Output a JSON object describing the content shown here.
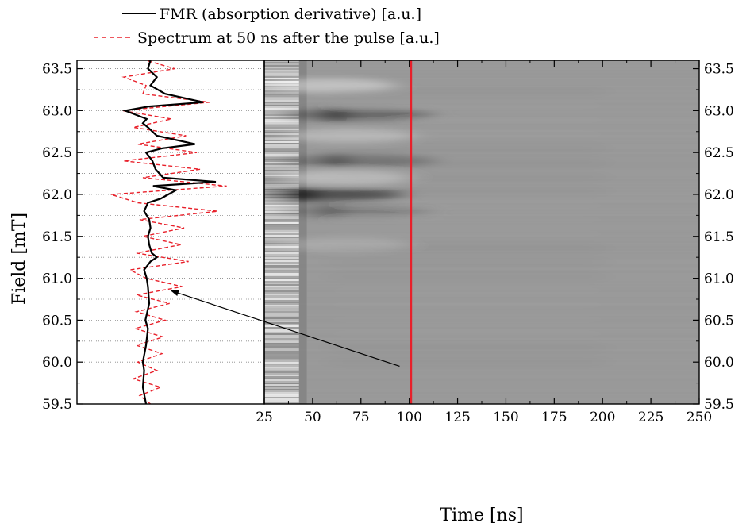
{
  "chart_data": {
    "type": "line",
    "legend": {
      "placement": "top-left",
      "entries": [
        {
          "label": "FMR (absorption derivative) [a.u.]",
          "color": "#000000",
          "style": "solid"
        },
        {
          "label": "Spectrum at 50 ns after the pulse [a.u.]",
          "color": "#e8202a",
          "style": "dashed"
        }
      ]
    },
    "y_axis": {
      "label": "Field [mT]",
      "range": [
        59.5,
        63.6
      ],
      "ticks": [
        "59.5",
        "60.0",
        "60.5",
        "61.0",
        "61.5",
        "62.0",
        "62.5",
        "63.0",
        "63.5"
      ],
      "tick_values": [
        59.5,
        60.0,
        60.5,
        61.0,
        61.5,
        62.0,
        62.5,
        63.0,
        63.5
      ]
    },
    "x_axis": {
      "label": "Time [ns]",
      "range": [
        25,
        250
      ],
      "ticks": [
        "25",
        "50",
        "75",
        "100",
        "125",
        "150",
        "175",
        "200",
        "225",
        "250"
      ],
      "tick_values": [
        25,
        50,
        75,
        100,
        125,
        150,
        175,
        200,
        225,
        250
      ]
    },
    "grid": "horizontal dotted at every 0.25 mT in left panel",
    "marker_time_ns": 101,
    "marker_color": "#e8202a",
    "arrow": {
      "from": [
        95,
        59.95
      ],
      "to": [
        61.25,
        60.85
      ],
      "from_panel": "heatmap",
      "to_panel": "spectrum"
    },
    "heatmap": {
      "colormap": "grayscale",
      "background_gray": "#9b9b9b",
      "dark_features": [
        {
          "field": 62.0,
          "time_center": 45,
          "intensity": -0.95
        },
        {
          "field": 62.95,
          "time_center": 62,
          "intensity": -0.6
        },
        {
          "field": 62.4,
          "time_center": 62,
          "intensity": -0.45
        },
        {
          "field": 61.8,
          "time_center": 60,
          "intensity": -0.35
        }
      ],
      "bright_features": [
        {
          "field": 63.3,
          "time_center": 48,
          "intensity": 0.7
        },
        {
          "field": 62.2,
          "time_center": 56,
          "intensity": 0.6
        },
        {
          "field": 62.7,
          "time_center": 58,
          "intensity": 0.5
        },
        {
          "field": 61.4,
          "time_center": 55,
          "intensity": 0.3
        }
      ]
    },
    "series": [
      {
        "name": "FMR (absorption derivative) [a.u.]",
        "field": [
          59.5,
          59.7,
          59.9,
          60.0,
          60.2,
          60.4,
          60.5,
          60.7,
          60.9,
          61.0,
          61.1,
          61.2,
          61.25,
          61.3,
          61.4,
          61.5,
          61.6,
          61.7,
          61.8,
          61.9,
          61.95,
          62.0,
          62.05,
          62.1,
          62.15,
          62.2,
          62.3,
          62.4,
          62.5,
          62.55,
          62.6,
          62.7,
          62.8,
          62.85,
          62.9,
          63.0,
          63.05,
          63.1,
          63.2,
          63.3,
          63.4,
          63.5,
          63.6
        ],
        "amplitude": [
          0.55,
          0.5,
          0.52,
          0.5,
          0.55,
          0.58,
          0.54,
          0.6,
          0.58,
          0.56,
          0.52,
          0.62,
          0.72,
          0.64,
          0.6,
          0.58,
          0.62,
          0.6,
          0.52,
          0.58,
          0.78,
          0.9,
          1.02,
          0.66,
          1.65,
          0.82,
          0.7,
          0.65,
          0.55,
          0.8,
          1.32,
          0.72,
          0.58,
          0.5,
          0.56,
          0.22,
          0.6,
          1.45,
          0.85,
          0.62,
          0.72,
          0.58,
          0.62
        ]
      },
      {
        "name": "Spectrum at 50 ns after the pulse [a.u.]",
        "field": [
          59.5,
          59.6,
          59.7,
          59.8,
          59.9,
          60.0,
          60.1,
          60.2,
          60.3,
          60.4,
          60.5,
          60.6,
          60.7,
          60.8,
          60.9,
          61.0,
          61.1,
          61.2,
          61.3,
          61.4,
          61.5,
          61.6,
          61.7,
          61.8,
          61.9,
          62.0,
          62.1,
          62.2,
          62.3,
          62.4,
          62.5,
          62.6,
          62.7,
          62.8,
          62.9,
          63.0,
          63.1,
          63.2,
          63.3,
          63.4,
          63.5,
          63.6
        ],
        "amplitude": [
          0.62,
          0.45,
          0.78,
          0.35,
          0.72,
          0.42,
          0.8,
          0.4,
          0.82,
          0.38,
          0.85,
          0.4,
          0.92,
          0.4,
          1.12,
          0.55,
          0.3,
          1.22,
          0.4,
          1.1,
          0.5,
          1.15,
          0.45,
          1.68,
          0.42,
          0.0,
          1.82,
          0.5,
          1.4,
          0.2,
          1.35,
          0.42,
          1.18,
          0.35,
          0.95,
          0.18,
          1.55,
          0.5,
          0.55,
          0.2,
          1.0,
          0.55
        ]
      }
    ]
  }
}
